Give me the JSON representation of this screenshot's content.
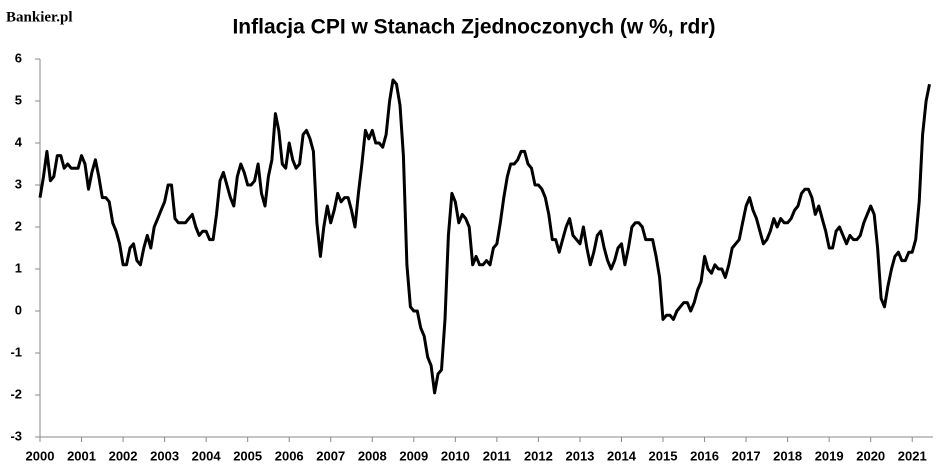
{
  "brand": "Bankier.pl",
  "chart_data": {
    "type": "line",
    "title": "Inflacja CPI w Stanach Zjednoczonych  (w %, rdr)",
    "xlim": [
      2000,
      2021.5
    ],
    "xticks": [
      2000,
      2001,
      2002,
      2003,
      2004,
      2005,
      2006,
      2007,
      2008,
      2009,
      2010,
      2011,
      2012,
      2013,
      2014,
      2015,
      2016,
      2017,
      2018,
      2019,
      2020,
      2021
    ],
    "ylim": [
      -3,
      6
    ],
    "yticks": [
      -3,
      -2,
      -1,
      0,
      1,
      2,
      3,
      4,
      5,
      6
    ],
    "grid": false,
    "series": [
      {
        "name": "CPI",
        "color": "#000000",
        "values": [
          2.7,
          3.2,
          3.8,
          3.1,
          3.2,
          3.7,
          3.7,
          3.4,
          3.5,
          3.4,
          3.4,
          3.4,
          3.7,
          3.5,
          2.9,
          3.3,
          3.6,
          3.2,
          2.7,
          2.7,
          2.6,
          2.1,
          1.9,
          1.6,
          1.1,
          1.1,
          1.5,
          1.6,
          1.2,
          1.1,
          1.5,
          1.8,
          1.5,
          2.0,
          2.2,
          2.4,
          2.6,
          3.0,
          3.0,
          2.2,
          2.1,
          2.1,
          2.1,
          2.2,
          2.3,
          2.0,
          1.8,
          1.9,
          1.9,
          1.7,
          1.7,
          2.3,
          3.1,
          3.3,
          3.0,
          2.7,
          2.5,
          3.2,
          3.5,
          3.3,
          3.0,
          3.0,
          3.1,
          3.5,
          2.8,
          2.5,
          3.2,
          3.6,
          4.7,
          4.3,
          3.5,
          3.4,
          4.0,
          3.6,
          3.4,
          3.5,
          4.2,
          4.3,
          4.1,
          3.8,
          2.1,
          1.3,
          2.0,
          2.5,
          2.1,
          2.4,
          2.8,
          2.6,
          2.7,
          2.7,
          2.4,
          2.0,
          2.8,
          3.5,
          4.3,
          4.1,
          4.3,
          4.0,
          4.0,
          3.9,
          4.2,
          5.0,
          5.5,
          5.4,
          4.9,
          3.7,
          1.1,
          0.1,
          0.0,
          0.0,
          -0.4,
          -0.6,
          -1.1,
          -1.3,
          -1.95,
          -1.5,
          -1.4,
          -0.2,
          1.8,
          2.8,
          2.6,
          2.1,
          2.3,
          2.2,
          2.0,
          1.1,
          1.3,
          1.1,
          1.1,
          1.2,
          1.1,
          1.5,
          1.6,
          2.1,
          2.7,
          3.2,
          3.5,
          3.5,
          3.6,
          3.8,
          3.8,
          3.5,
          3.4,
          3.0,
          3.0,
          2.9,
          2.7,
          2.3,
          1.7,
          1.7,
          1.4,
          1.7,
          2.0,
          2.2,
          1.8,
          1.7,
          1.6,
          2.0,
          1.5,
          1.1,
          1.4,
          1.8,
          1.9,
          1.5,
          1.2,
          1.0,
          1.2,
          1.5,
          1.6,
          1.1,
          1.5,
          2.0,
          2.1,
          2.1,
          2.0,
          1.7,
          1.7,
          1.7,
          1.3,
          0.8,
          -0.2,
          -0.1,
          -0.1,
          -0.2,
          0.0,
          0.1,
          0.2,
          0.2,
          0.0,
          0.2,
          0.5,
          0.7,
          1.3,
          1.0,
          0.9,
          1.1,
          1.0,
          1.0,
          0.8,
          1.1,
          1.5,
          1.6,
          1.7,
          2.1,
          2.5,
          2.7,
          2.4,
          2.2,
          1.9,
          1.6,
          1.7,
          1.9,
          2.2,
          2.0,
          2.2,
          2.1,
          2.1,
          2.2,
          2.4,
          2.5,
          2.8,
          2.9,
          2.9,
          2.7,
          2.3,
          2.5,
          2.2,
          1.9,
          1.5,
          1.5,
          1.9,
          2.0,
          1.8,
          1.6,
          1.8,
          1.7,
          1.7,
          1.8,
          2.1,
          2.3,
          2.5,
          2.3,
          1.5,
          0.3,
          0.1,
          0.6,
          1.0,
          1.3,
          1.4,
          1.2,
          1.2,
          1.4,
          1.4,
          1.7,
          2.6,
          4.2,
          5.0,
          5.4
        ]
      }
    ]
  }
}
